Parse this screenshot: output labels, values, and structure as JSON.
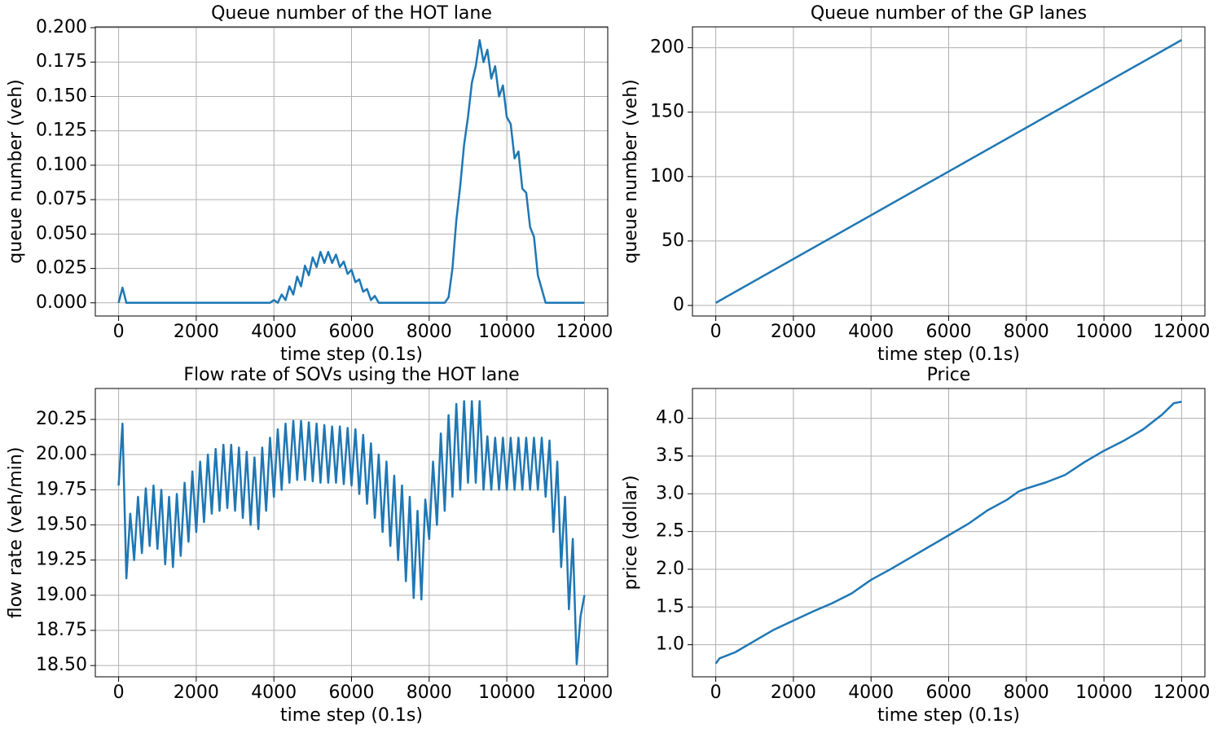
{
  "chart_data": [
    {
      "type": "line",
      "title": "Queue number of the HOT lane",
      "xlabel": "time step (0.1s)",
      "ylabel": "queue number (veh)",
      "color": "#1f77b4",
      "grid": true,
      "xlim": [
        -600,
        12600
      ],
      "xticks": [
        0,
        2000,
        4000,
        6000,
        8000,
        10000,
        12000
      ],
      "ylim": [
        -0.0096,
        0.2006
      ],
      "yticks": [
        {
          "value": 0,
          "label": "0.000"
        },
        {
          "value": 0.025,
          "label": "0.025"
        },
        {
          "value": 0.05,
          "label": "0.050"
        },
        {
          "value": 0.075,
          "label": "0.075"
        },
        {
          "value": 0.1,
          "label": "0.100"
        },
        {
          "value": 0.125,
          "label": "0.125"
        },
        {
          "value": 0.15,
          "label": "0.150"
        },
        {
          "value": 0.175,
          "label": "0.175"
        },
        {
          "value": 0.2,
          "label": "0.200"
        }
      ],
      "x": [
        0,
        100,
        200,
        300,
        400,
        500,
        600,
        700,
        800,
        900,
        1000,
        1100,
        1200,
        1300,
        1400,
        1500,
        1600,
        1700,
        1800,
        1900,
        2000,
        2100,
        2200,
        2300,
        2400,
        2500,
        2600,
        2700,
        2800,
        2900,
        3000,
        3100,
        3200,
        3300,
        3400,
        3500,
        3600,
        3700,
        3800,
        3900,
        4000,
        4100,
        4200,
        4300,
        4400,
        4500,
        4600,
        4700,
        4800,
        4900,
        5000,
        5100,
        5200,
        5300,
        5400,
        5500,
        5600,
        5700,
        5800,
        5900,
        6000,
        6100,
        6200,
        6300,
        6400,
        6500,
        6600,
        6700,
        6800,
        6900,
        7000,
        7100,
        7200,
        7300,
        7400,
        7500,
        7600,
        7700,
        7800,
        7900,
        8000,
        8100,
        8200,
        8300,
        8400,
        8500,
        8600,
        8700,
        8800,
        8900,
        9000,
        9100,
        9200,
        9300,
        9400,
        9500,
        9600,
        9700,
        9800,
        9900,
        10000,
        10100,
        10200,
        10300,
        10400,
        10500,
        10600,
        10700,
        10800,
        10900,
        11000,
        11100,
        11200,
        11300,
        11400,
        11500,
        11600,
        11700,
        11800,
        11900,
        12000
      ],
      "values": [
        0,
        0.011,
        0,
        0,
        0,
        0,
        0,
        0,
        0,
        0,
        0,
        0,
        0,
        0,
        0,
        0,
        0,
        0,
        0,
        0,
        0,
        0,
        0,
        0,
        0,
        0,
        0,
        0,
        0,
        0,
        0,
        0,
        0,
        0,
        0,
        0,
        0,
        0,
        0,
        0,
        0.002,
        0,
        0.006,
        0.002,
        0.012,
        0.006,
        0.019,
        0.012,
        0.027,
        0.02,
        0.033,
        0.026,
        0.037,
        0.029,
        0.037,
        0.029,
        0.035,
        0.026,
        0.03,
        0.021,
        0.024,
        0.015,
        0.017,
        0.008,
        0.01,
        0.002,
        0.005,
        0,
        0,
        0,
        0,
        0,
        0,
        0,
        0,
        0,
        0,
        0,
        0,
        0,
        0,
        0,
        0,
        0,
        0,
        0.004,
        0.025,
        0.06,
        0.085,
        0.115,
        0.135,
        0.16,
        0.172,
        0.191,
        0.175,
        0.184,
        0.163,
        0.172,
        0.15,
        0.158,
        0.135,
        0.13,
        0.105,
        0.11,
        0.083,
        0.08,
        0.055,
        0.048,
        0.02,
        0.01,
        0,
        0,
        0,
        0,
        0,
        0,
        0,
        0,
        0,
        0,
        0
      ]
    },
    {
      "type": "line",
      "title": "Queue number of the GP lanes",
      "xlabel": "time step (0.1s)",
      "ylabel": "queue number (veh)",
      "color": "#1f77b4",
      "grid": true,
      "xlim": [
        -600,
        12600
      ],
      "xticks": [
        0,
        2000,
        4000,
        6000,
        8000,
        10000,
        12000
      ],
      "ylim": [
        -8.2,
        216.2
      ],
      "yticks": [
        0,
        50,
        100,
        150,
        200
      ],
      "x": [
        0,
        12000
      ],
      "values": [
        2,
        206
      ]
    },
    {
      "type": "line",
      "title": "Flow rate of SOVs using the HOT lane",
      "xlabel": "time step (0.1s)",
      "ylabel": "flow rate (veh/min)",
      "color": "#1f77b4",
      "grid": true,
      "xlim": [
        -600,
        12600
      ],
      "xticks": [
        0,
        2000,
        4000,
        6000,
        8000,
        10000,
        12000
      ],
      "ylim": [
        18.42,
        20.47
      ],
      "yticks": [
        {
          "value": 18.5,
          "label": "18.50"
        },
        18.75,
        {
          "value": 19,
          "label": "19.00"
        },
        19.25,
        {
          "value": 19.5,
          "label": "19.50"
        },
        19.75,
        {
          "value": 20,
          "label": "20.00"
        },
        20.25
      ],
      "x": [
        0,
        100,
        200,
        300,
        400,
        500,
        600,
        700,
        800,
        900,
        1000,
        1100,
        1200,
        1300,
        1400,
        1500,
        1600,
        1700,
        1800,
        1900,
        2000,
        2100,
        2200,
        2300,
        2400,
        2500,
        2600,
        2700,
        2800,
        2900,
        3000,
        3100,
        3200,
        3300,
        3400,
        3500,
        3600,
        3700,
        3800,
        3900,
        4000,
        4100,
        4200,
        4300,
        4400,
        4500,
        4600,
        4700,
        4800,
        4900,
        5000,
        5100,
        5200,
        5300,
        5400,
        5500,
        5600,
        5700,
        5800,
        5900,
        6000,
        6100,
        6200,
        6300,
        6400,
        6500,
        6600,
        6700,
        6800,
        6900,
        7000,
        7100,
        7200,
        7300,
        7400,
        7500,
        7600,
        7700,
        7800,
        7900,
        8000,
        8100,
        8200,
        8300,
        8400,
        8500,
        8600,
        8700,
        8800,
        8900,
        9000,
        9100,
        9200,
        9300,
        9400,
        9500,
        9600,
        9700,
        9800,
        9900,
        10000,
        10100,
        10200,
        10300,
        10400,
        10500,
        10600,
        10700,
        10800,
        10900,
        11000,
        11100,
        11200,
        11300,
        11400,
        11500,
        11600,
        11700,
        11800,
        11900,
        12000
      ],
      "values": [
        19.78,
        20.22,
        19.12,
        19.58,
        19.25,
        19.7,
        19.3,
        19.76,
        19.35,
        19.78,
        19.33,
        19.75,
        19.22,
        19.7,
        19.2,
        19.72,
        19.28,
        19.8,
        19.38,
        19.88,
        19.45,
        19.95,
        19.52,
        20.0,
        19.58,
        20.04,
        19.6,
        20.07,
        19.62,
        20.07,
        19.6,
        20.05,
        19.55,
        20.02,
        19.5,
        19.98,
        19.47,
        20.05,
        19.6,
        20.12,
        19.7,
        20.18,
        19.75,
        20.22,
        19.8,
        20.24,
        19.82,
        20.24,
        19.82,
        20.23,
        19.81,
        20.22,
        19.8,
        20.21,
        19.8,
        20.2,
        19.8,
        20.2,
        19.79,
        20.19,
        19.78,
        20.18,
        19.72,
        20.14,
        19.65,
        20.08,
        19.55,
        20.0,
        19.45,
        19.95,
        19.35,
        19.85,
        19.25,
        19.78,
        19.1,
        19.7,
        18.98,
        19.6,
        18.97,
        19.68,
        19.4,
        19.95,
        19.5,
        20.15,
        19.6,
        20.28,
        19.7,
        20.36,
        19.75,
        20.38,
        19.8,
        20.38,
        19.8,
        20.38,
        19.75,
        20.13,
        19.75,
        20.12,
        19.75,
        20.12,
        19.75,
        20.12,
        19.75,
        20.12,
        19.75,
        20.12,
        19.75,
        20.12,
        19.75,
        20.12,
        19.7,
        20.1,
        19.45,
        19.95,
        19.2,
        19.7,
        18.9,
        19.4,
        18.51,
        18.85,
        19.0
      ]
    },
    {
      "type": "line",
      "title": "Price",
      "xlabel": "time step (0.1s)",
      "ylabel": "price (dollar)",
      "color": "#1f77b4",
      "grid": true,
      "xlim": [
        -600,
        12600
      ],
      "xticks": [
        0,
        2000,
        4000,
        6000,
        8000,
        10000,
        12000
      ],
      "ylim": [
        0.575,
        4.395
      ],
      "yticks": [
        {
          "value": 1,
          "label": "1.0"
        },
        1.5,
        {
          "value": 2,
          "label": "2.0"
        },
        2.5,
        {
          "value": 3,
          "label": "3.0"
        },
        3.5,
        {
          "value": 4,
          "label": "4.0"
        }
      ],
      "x": [
        0,
        100,
        500,
        1000,
        1500,
        2000,
        2500,
        3000,
        3500,
        4000,
        4500,
        5000,
        5500,
        6000,
        6500,
        7000,
        7500,
        7800,
        8000,
        8500,
        9000,
        9500,
        10000,
        10500,
        11000,
        11500,
        11800,
        12000
      ],
      "values": [
        0.75,
        0.82,
        0.9,
        1.05,
        1.2,
        1.32,
        1.44,
        1.55,
        1.68,
        1.86,
        2.0,
        2.15,
        2.3,
        2.45,
        2.6,
        2.78,
        2.92,
        3.03,
        3.07,
        3.15,
        3.25,
        3.42,
        3.57,
        3.7,
        3.85,
        4.05,
        4.2,
        4.22
      ]
    }
  ]
}
